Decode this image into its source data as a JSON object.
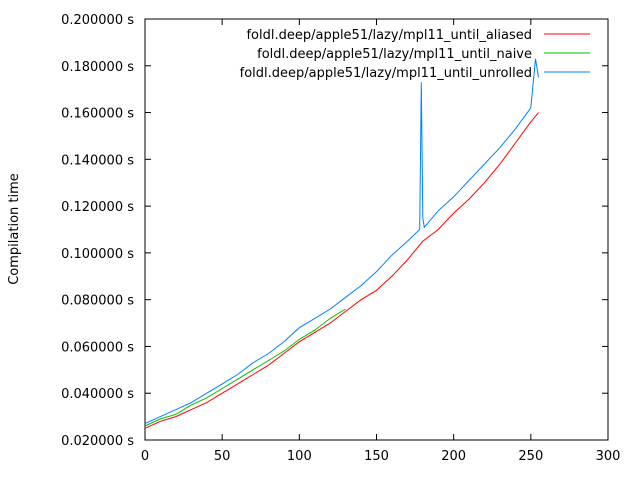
{
  "chart_data": {
    "type": "line",
    "title": "",
    "xlabel": "",
    "ylabel": "Compilation time",
    "xlim": [
      0,
      300
    ],
    "ylim": [
      0.02,
      0.2
    ],
    "grid": false,
    "legend_position": "top-right",
    "x_ticks": [
      0,
      50,
      100,
      150,
      200,
      250,
      300
    ],
    "x_tick_labels": [
      "0",
      "50",
      "100",
      "150",
      "200",
      "250",
      "300"
    ],
    "y_ticks": [
      0.02,
      0.04,
      0.06,
      0.08,
      0.1,
      0.12,
      0.14,
      0.16,
      0.18,
      0.2
    ],
    "y_tick_labels": [
      "0.020000 s",
      "0.040000 s",
      "0.060000 s",
      "0.080000 s",
      "0.100000 s",
      "0.120000 s",
      "0.140000 s",
      "0.160000 s",
      "0.180000 s",
      "0.200000 s"
    ],
    "series": [
      {
        "name": "foldl.deep/apple51/lazy/mpl11_until_aliased",
        "color": "#ff0000",
        "x": [
          0,
          10,
          20,
          30,
          40,
          50,
          60,
          70,
          80,
          90,
          100,
          110,
          120,
          130,
          140,
          150,
          160,
          170,
          180,
          190,
          200,
          210,
          220,
          230,
          240,
          250,
          255
        ],
        "y": [
          0.025,
          0.028,
          0.03,
          0.033,
          0.036,
          0.04,
          0.044,
          0.048,
          0.052,
          0.057,
          0.062,
          0.066,
          0.07,
          0.075,
          0.08,
          0.084,
          0.09,
          0.097,
          0.105,
          0.11,
          0.117,
          0.123,
          0.13,
          0.138,
          0.147,
          0.156,
          0.16
        ]
      },
      {
        "name": "foldl.deep/apple51/lazy/mpl11_until_naive",
        "color": "#00c000",
        "x": [
          0,
          10,
          20,
          30,
          40,
          50,
          60,
          70,
          80,
          90,
          100,
          110,
          120,
          130
        ],
        "y": [
          0.026,
          0.029,
          0.031,
          0.035,
          0.038,
          0.042,
          0.046,
          0.05,
          0.054,
          0.058,
          0.063,
          0.067,
          0.072,
          0.076
        ]
      },
      {
        "name": "foldl.deep/apple51/lazy/mpl11_until_unrolled",
        "color": "#0080ff",
        "x": [
          0,
          10,
          20,
          30,
          40,
          50,
          60,
          70,
          80,
          90,
          100,
          110,
          120,
          130,
          140,
          150,
          160,
          170,
          178,
          179,
          180,
          181,
          190,
          200,
          210,
          220,
          230,
          240,
          250,
          253,
          255
        ],
        "y": [
          0.027,
          0.03,
          0.033,
          0.036,
          0.04,
          0.044,
          0.048,
          0.053,
          0.057,
          0.062,
          0.068,
          0.072,
          0.076,
          0.081,
          0.086,
          0.092,
          0.099,
          0.105,
          0.11,
          0.173,
          0.115,
          0.111,
          0.118,
          0.124,
          0.131,
          0.138,
          0.145,
          0.153,
          0.162,
          0.183,
          0.175
        ]
      }
    ]
  }
}
